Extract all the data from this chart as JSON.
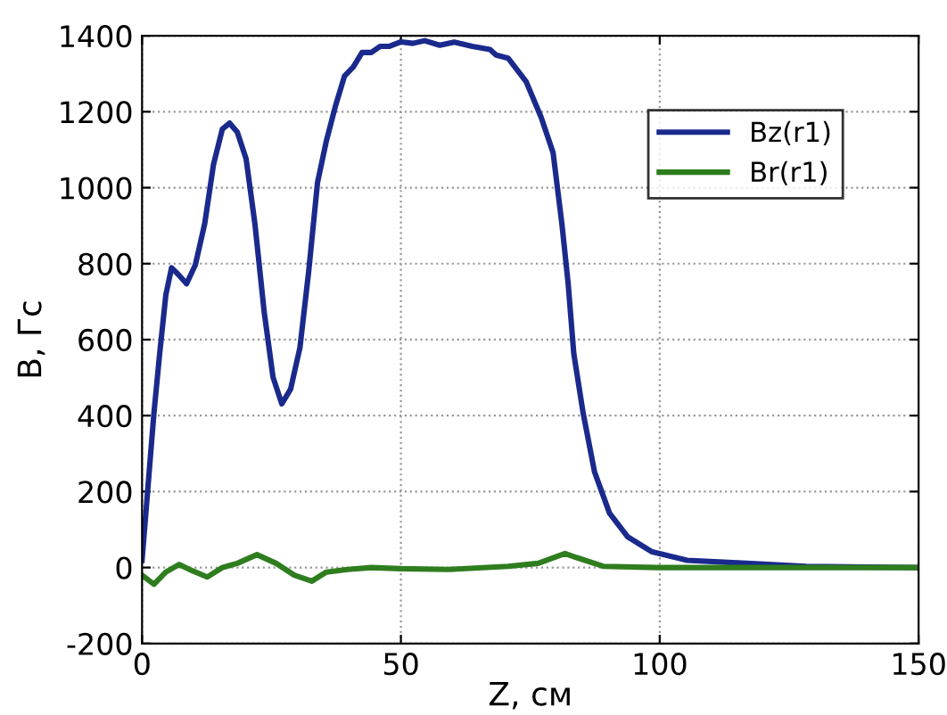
{
  "chart_data": {
    "type": "line",
    "xlabel": "Z, см",
    "ylabel": "B, Гс",
    "xlim": [
      0,
      150
    ],
    "xticks": [
      0,
      50,
      100,
      150
    ],
    "ylim": [
      -200,
      1400
    ],
    "yticks": [
      -200,
      0,
      200,
      400,
      600,
      800,
      1000,
      1200,
      1400
    ],
    "grid": true,
    "legend": "top right",
    "line_style": "solid",
    "marker": "none",
    "series": [
      {
        "name": "Bz(r1)",
        "color": "#1a2a8c",
        "x": [
          0,
          1.1,
          2.3,
          3.4,
          4.6,
          5.7,
          6.9,
          8.6,
          10.3,
          12.1,
          13.8,
          15.5,
          16.9,
          18.4,
          20.1,
          21.8,
          23.6,
          25.3,
          27,
          28.7,
          30.5,
          32.2,
          33.9,
          35.6,
          37.4,
          39.1,
          40.8,
          42.5,
          44.3,
          46,
          47.7,
          50,
          52.3,
          54.6,
          57.5,
          60.3,
          63.8,
          67.2,
          68.4,
          70.7,
          74.2,
          77.1,
          79.4,
          81.1,
          82.3,
          83.4,
          85.2,
          87.4,
          90.3,
          93.8,
          98.4,
          105.3,
          116.8,
          128.3,
          150
        ],
        "values": [
          19,
          205,
          407,
          563,
          718,
          789,
          773,
          747,
          797,
          905,
          1061,
          1154,
          1170,
          1146,
          1076,
          905,
          672,
          501,
          431,
          470,
          579,
          781,
          1014,
          1123,
          1217,
          1294,
          1318,
          1356,
          1356,
          1372,
          1372,
          1384,
          1380,
          1387,
          1375,
          1383,
          1372,
          1364,
          1349,
          1341,
          1279,
          1185,
          1092,
          905,
          749,
          563,
          407,
          252,
          143,
          81,
          42,
          19,
          11,
          3,
          0
        ]
      },
      {
        "name": "Br(r1)",
        "color": "#2e7d1e",
        "x": [
          0,
          2.3,
          4.6,
          7.2,
          9.8,
          12.6,
          15.5,
          18.4,
          22.2,
          25.9,
          29.4,
          32.8,
          35.6,
          39.7,
          44.3,
          50,
          59.2,
          70.7,
          76.5,
          81.7,
          84,
          89.2,
          99.5,
          150
        ],
        "values": [
          -20,
          -44,
          -12,
          8,
          -9,
          -25,
          0,
          11,
          34,
          11,
          -20,
          -36,
          -12,
          -5,
          0,
          -3,
          -5,
          3,
          11,
          37,
          26,
          3,
          0,
          0
        ]
      }
    ]
  }
}
